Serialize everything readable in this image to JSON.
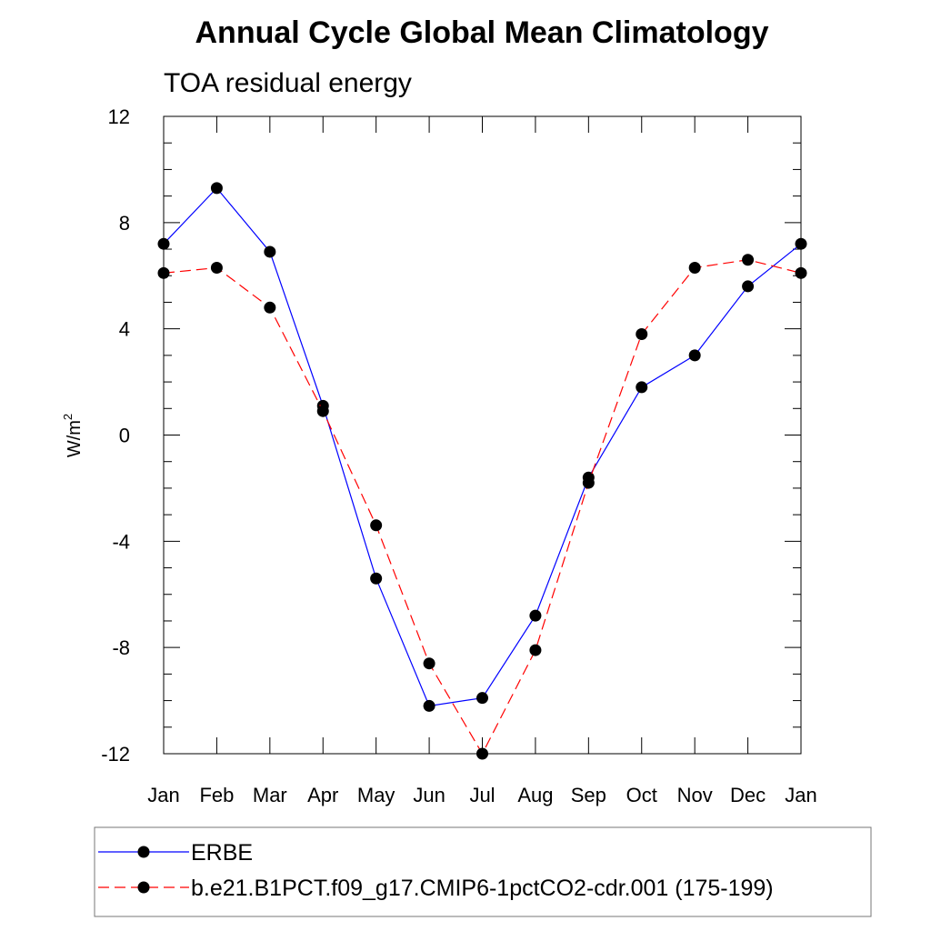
{
  "chart_data": {
    "type": "line",
    "title": "Annual Cycle Global Mean Climatology",
    "subtitle": "TOA residual energy",
    "xlabel": "",
    "ylabel": "W/m",
    "ylabel_superscript": "2",
    "categories": [
      "Jan",
      "Feb",
      "Mar",
      "Apr",
      "May",
      "Jun",
      "Jul",
      "Aug",
      "Sep",
      "Oct",
      "Nov",
      "Dec",
      "Jan"
    ],
    "ylim": [
      -12,
      12
    ],
    "yticks": [
      12,
      8,
      4,
      0,
      -4,
      -8,
      -12
    ],
    "ytick_labels": [
      "12",
      "8",
      "4",
      "0",
      "-4",
      "-8",
      "-12"
    ],
    "grid": false,
    "legend_position": "bottom",
    "series": [
      {
        "name": "ERBE",
        "color": "#0000ff",
        "line_style": "solid",
        "marker": "filled-circle",
        "values": [
          7.2,
          9.3,
          6.9,
          1.1,
          -5.4,
          -10.2,
          -9.9,
          -6.8,
          -1.6,
          1.8,
          3.0,
          5.6,
          7.2
        ]
      },
      {
        "name": "b.e21.B1PCT.f09_g17.CMIP6-1pctCO2-cdr.001 (175-199)",
        "color": "#ff0000",
        "line_style": "dashed",
        "marker": "filled-circle",
        "values": [
          6.1,
          6.3,
          4.8,
          0.9,
          -3.4,
          -8.6,
          -12.0,
          -8.1,
          -1.8,
          3.8,
          6.3,
          6.6,
          6.1
        ]
      }
    ]
  }
}
